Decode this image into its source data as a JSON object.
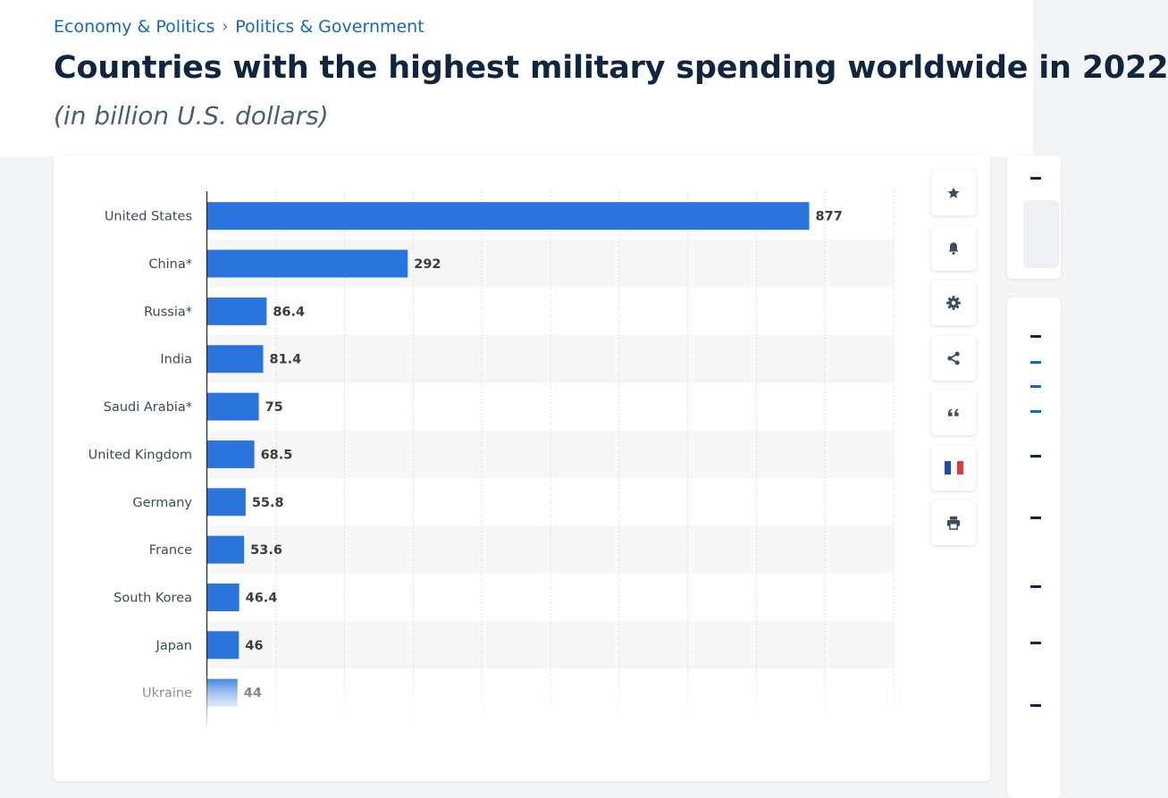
{
  "breadcrumb": {
    "items": [
      "Economy & Politics",
      "Politics & Government"
    ],
    "separator": "›"
  },
  "page": {
    "title": "Countries with the highest military spending worldwide in 2022",
    "subtitle": "(in billion U.S. dollars)"
  },
  "toolbar": {
    "buttons": [
      {
        "icon": "star-icon"
      },
      {
        "icon": "bell-icon"
      },
      {
        "icon": "gear-icon"
      },
      {
        "icon": "share-icon"
      },
      {
        "icon": "quote-icon"
      },
      {
        "icon": "french-flag-icon"
      },
      {
        "icon": "printer-icon"
      }
    ]
  },
  "colors": {
    "bar": "#2a74dc",
    "link": "#1068c2",
    "title": "#0f2540",
    "band": "#f7f7f7"
  },
  "chart_data": {
    "type": "bar",
    "orientation": "horizontal",
    "categories": [
      "United States",
      "China*",
      "Russia*",
      "India",
      "Saudi Arabia*",
      "United Kingdom",
      "Germany",
      "France",
      "South Korea",
      "Japan",
      "Ukraine"
    ],
    "values": [
      877,
      292,
      86.4,
      81.4,
      75,
      68.5,
      55.8,
      53.6,
      46.4,
      46,
      44
    ],
    "value_labels": [
      "877",
      "292",
      "86.4",
      "81.4",
      "75",
      "68.5",
      "55.8",
      "53.6",
      "46.4",
      "46",
      "44"
    ],
    "xlim": [
      0,
      1000
    ],
    "grid": true,
    "legend": "none",
    "data_labels": "outside-end"
  }
}
